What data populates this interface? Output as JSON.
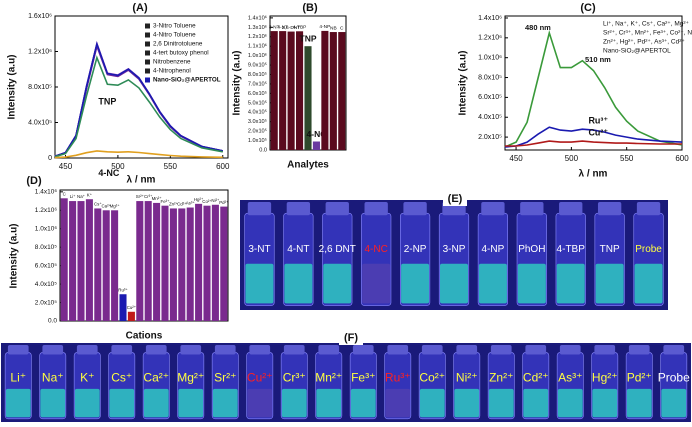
{
  "chart_data": [
    {
      "type": "line",
      "title": "(A)",
      "x_label": "λ / nm",
      "y_label": "Intensity (a.u)",
      "x": [
        440,
        450,
        460,
        470,
        480,
        490,
        500,
        510,
        520,
        530,
        540,
        550,
        560,
        580,
        600
      ],
      "xlim": [
        440,
        605
      ],
      "xticks": [
        450,
        500,
        550,
        600
      ],
      "ylim": [
        0,
        1600000
      ],
      "yticks": [
        0,
        {
          "value": 400000,
          "label": "4.0x10⁵"
        },
        {
          "value": 800000,
          "label": "8.0x10⁵"
        },
        {
          "value": 1200000,
          "label": "1.2x10⁶"
        },
        {
          "value": 1600000,
          "label": "1.6x10⁶"
        }
      ],
      "series": [
        {
          "name": "3-Nitro Toluene",
          "color": "#7b2d8e",
          "values": [
            20000,
            60000,
            250000,
            800000,
            1280000,
            950000,
            930000,
            1000000,
            900000,
            720000,
            520000,
            360000,
            250000,
            130000,
            80000
          ]
        },
        {
          "name": "4-Nitro Toluene",
          "color": "#3a3ab0",
          "values": [
            20000,
            60000,
            245000,
            790000,
            1270000,
            945000,
            925000,
            995000,
            895000,
            715000,
            515000,
            355000,
            248000,
            128000,
            79000
          ]
        },
        {
          "name": "2,6 Dinitrotoluene",
          "color": "#c040c0",
          "values": [
            20000,
            62000,
            255000,
            810000,
            1290000,
            955000,
            935000,
            1005000,
            905000,
            722000,
            522000,
            362000,
            252000,
            131000,
            80000
          ]
        },
        {
          "name": "4-tert butoxy phenol",
          "color": "#6a1a9a",
          "values": [
            20000,
            58000,
            240000,
            780000,
            1260000,
            940000,
            920000,
            990000,
            890000,
            712000,
            512000,
            352000,
            246000,
            127000,
            78000
          ]
        },
        {
          "name": "Nitrobenzene",
          "color": "#2a5ad0",
          "values": [
            20000,
            61000,
            250000,
            805000,
            1285000,
            952000,
            932000,
            1002000,
            902000,
            720000,
            520000,
            360000,
            250000,
            130000,
            80000
          ]
        },
        {
          "name": "4-Nitrophenol",
          "color": "#8a3aa0",
          "values": [
            20000,
            60000,
            248000,
            795000,
            1275000,
            948000,
            928000,
            998000,
            898000,
            718000,
            518000,
            358000,
            249000,
            129000,
            79000
          ]
        },
        {
          "name": "Nano-SiO₂@APERTOL",
          "color": "#1a1ab0",
          "values": [
            20000,
            60000,
            252000,
            802000,
            1282000,
            951000,
            931000,
            1001000,
            901000,
            721000,
            521000,
            361000,
            251000,
            130000,
            80000
          ]
        },
        {
          "name": "TNP",
          "color": "#2e8b57",
          "in_legend": false,
          "values": [
            15000,
            50000,
            220000,
            700000,
            1130000,
            830000,
            820000,
            880000,
            790000,
            630000,
            460000,
            320000,
            220000,
            115000,
            70000
          ]
        },
        {
          "name": "4-NC",
          "color": "#e0a020",
          "in_legend": false,
          "values": [
            5000,
            10000,
            30000,
            60000,
            80000,
            70000,
            65000,
            70000,
            62000,
            50000,
            38000,
            28000,
            20000,
            12000,
            8000
          ]
        }
      ]
    },
    {
      "type": "bar",
      "title": "(B)",
      "x_label": "Analytes",
      "y_label": "Intensity (a.u)",
      "categories": [
        "3-NT",
        "4-NT",
        "2,6-DNT",
        "4-TBP",
        "TNP",
        "4-NC",
        "4-NP",
        "NB",
        "C"
      ],
      "values": [
        1260000,
        1260000,
        1255000,
        1258000,
        1100000,
        90000,
        1262000,
        1250000,
        1250000
      ],
      "colors": [
        "#5a0a1e",
        "#5a0a1e",
        "#5a0a1e",
        "#5a0a1e",
        "#2f4a2c",
        "#6a3aa0",
        "#5a0a1e",
        "#5a0a1e",
        "#5a0a1e"
      ],
      "ylim": [
        0,
        1420000
      ],
      "yticks": [
        {
          "value": 0,
          "label": "0.0"
        },
        {
          "value": 100000,
          "label": "1.0x10⁵"
        },
        {
          "value": 200000,
          "label": "2.0x10⁵"
        },
        {
          "value": 300000,
          "label": "3.0x10⁵"
        },
        {
          "value": 400000,
          "label": "4.0x10⁵"
        },
        {
          "value": 500000,
          "label": "5.0x10⁵"
        },
        {
          "value": 600000,
          "label": "6.0x10⁵"
        },
        {
          "value": 700000,
          "label": "7.0x10⁵"
        },
        {
          "value": 800000,
          "label": "8.0x10⁵"
        },
        {
          "value": 900000,
          "label": "9.0x10⁵"
        },
        {
          "value": 1000000,
          "label": "1.0x10⁶"
        },
        {
          "value": 1100000,
          "label": "1.1x10⁶"
        },
        {
          "value": 1200000,
          "label": "1.2x10⁶"
        },
        {
          "value": 1300000,
          "label": "1.3x10⁶"
        },
        {
          "value": 1400000,
          "label": "1.4x10⁶"
        }
      ]
    },
    {
      "type": "line",
      "title": "(C)",
      "x_label": "λ / nm",
      "y_label": "Intensity (a.u)",
      "annotations": [
        "480 nm",
        "510 nm"
      ],
      "legend_lines": [
        "Li⁺, Na⁺, K⁺, Cs⁺, Ca²⁺, Mg²⁺",
        "Sr²⁺, Cr³⁺, Mn²⁺, Fe³⁺, Co²⁺, Ni²⁺",
        "Zn²⁺, Hg²⁺, Pd²⁺, As³⁺, Cd²⁺"
      ],
      "x": [
        440,
        450,
        460,
        470,
        480,
        490,
        500,
        510,
        520,
        530,
        540,
        550,
        560,
        580,
        600
      ],
      "xlim": [
        440,
        600
      ],
      "xticks": [
        450,
        500,
        550,
        600
      ],
      "ylim": [
        70000,
        1420000
      ],
      "yticks": [
        {
          "value": 200000,
          "label": "2.0x10⁵"
        },
        {
          "value": 400000,
          "label": "4.0x10⁵"
        },
        {
          "value": 600000,
          "label": "6.0x10⁵"
        },
        {
          "value": 800000,
          "label": "8.0x10⁵"
        },
        {
          "value": 1000000,
          "label": "1.0x10⁶"
        },
        {
          "value": 1200000,
          "label": "1.2x10⁶"
        },
        {
          "value": 1400000,
          "label": "1.4x10⁶"
        }
      ],
      "series": [
        {
          "name": "Nano-SiO₂@APERTOL",
          "color": "#3a9a3a",
          "values": [
            100000,
            150000,
            350000,
            800000,
            1250000,
            900000,
            900000,
            970000,
            870000,
            700000,
            500000,
            360000,
            260000,
            160000,
            120000
          ]
        },
        {
          "name": "Ru³⁺",
          "color": "#1a1ab0",
          "in_legend": false,
          "values": [
            100000,
            110000,
            150000,
            230000,
            300000,
            270000,
            260000,
            280000,
            270000,
            250000,
            220000,
            200000,
            180000,
            160000,
            150000
          ]
        },
        {
          "name": "Cu²⁺",
          "color": "#b01a1a",
          "in_legend": false,
          "values": [
            110000,
            110000,
            120000,
            140000,
            160000,
            150000,
            150000,
            160000,
            150000,
            145000,
            140000,
            140000,
            135000,
            130000,
            130000
          ]
        }
      ]
    },
    {
      "type": "bar",
      "title": "(D)",
      "x_label": "Cations",
      "y_label": "Intensity (a.u)",
      "categories": [
        "C",
        "Li⁺",
        "Na⁺",
        "K⁺",
        "Cs⁺",
        "Ca²⁺",
        "Mg²⁺",
        "Ru³⁺",
        "Cu²⁺",
        "Sr²⁺",
        "Cr³⁺",
        "Mn²⁺",
        "Fe³⁺",
        "Zn²⁺",
        "Cd²⁺",
        "As³⁺",
        "Hg²⁺",
        "Co²⁺",
        "Ni²⁺",
        "Pd²⁺"
      ],
      "values": [
        1330000,
        1300000,
        1300000,
        1320000,
        1220000,
        1200000,
        1200000,
        290000,
        100000,
        1300000,
        1300000,
        1280000,
        1250000,
        1220000,
        1220000,
        1230000,
        1270000,
        1250000,
        1260000,
        1240000
      ],
      "colors": [
        "#7a2a8e",
        "#7a2a8e",
        "#7a2a8e",
        "#7a2a8e",
        "#7a2a8e",
        "#7a2a8e",
        "#7a2a8e",
        "#1a1ab0",
        "#c01a1a",
        "#7a2a8e",
        "#7a2a8e",
        "#7a2a8e",
        "#7a2a8e",
        "#7a2a8e",
        "#7a2a8e",
        "#7a2a8e",
        "#7a2a8e",
        "#7a2a8e",
        "#7a2a8e",
        "#7a2a8e"
      ],
      "ylim": [
        0,
        1420000
      ],
      "yticks": [
        {
          "value": 0,
          "label": "0.0"
        },
        {
          "value": 200000,
          "label": "2.0x10⁵"
        },
        {
          "value": 400000,
          "label": "4.0x10⁵"
        },
        {
          "value": 600000,
          "label": "6.0x10⁵"
        },
        {
          "value": 800000,
          "label": "8.0x10⁵"
        },
        {
          "value": 1000000,
          "label": "1.0x10⁶"
        },
        {
          "value": 1200000,
          "label": "1.2x10⁶"
        },
        {
          "value": 1400000,
          "label": "1.4x10⁶"
        }
      ]
    }
  ],
  "photos": [
    {
      "label": "(E)",
      "vials": [
        {
          "text": "3-NT",
          "color": "#ffffff"
        },
        {
          "text": "4-NT",
          "color": "#ffffff"
        },
        {
          "text": "2,6 DNT",
          "color": "#ffffff"
        },
        {
          "text": "4-NC",
          "color": "#ff2020"
        },
        {
          "text": "2-NP",
          "color": "#ffffff"
        },
        {
          "text": "3-NP",
          "color": "#ffffff"
        },
        {
          "text": "4-NP",
          "color": "#ffffff"
        },
        {
          "text": "PhOH",
          "color": "#ffffff"
        },
        {
          "text": "4-TBP",
          "color": "#ffffff"
        },
        {
          "text": "TNP",
          "color": "#ffffff"
        },
        {
          "text": "Probe",
          "color": "#ffff40"
        }
      ]
    },
    {
      "label": "(F)",
      "vials": [
        {
          "text": "Li⁺",
          "color": "#ffff40"
        },
        {
          "text": "Na⁺",
          "color": "#ffff40"
        },
        {
          "text": "K⁺",
          "color": "#ffff40"
        },
        {
          "text": "Cs⁺",
          "color": "#ffff40"
        },
        {
          "text": "Ca²⁺",
          "color": "#ffff40"
        },
        {
          "text": "Mg²⁺",
          "color": "#ffff40"
        },
        {
          "text": "Sr²⁺",
          "color": "#ffff40"
        },
        {
          "text": "Cu²⁺",
          "color": "#ff2020"
        },
        {
          "text": "Cr³⁺",
          "color": "#ffff40"
        },
        {
          "text": "Mn²⁺",
          "color": "#ffff40"
        },
        {
          "text": "Fe³⁺",
          "color": "#ffff40"
        },
        {
          "text": "Ru³⁺",
          "color": "#ff2020"
        },
        {
          "text": "Co²⁺",
          "color": "#ffff40"
        },
        {
          "text": "Ni²⁺",
          "color": "#ffff40"
        },
        {
          "text": "Zn²⁺",
          "color": "#ffff40"
        },
        {
          "text": "Cd²⁺",
          "color": "#ffff40"
        },
        {
          "text": "As³⁺",
          "color": "#ffff40"
        },
        {
          "text": "Hg²⁺",
          "color": "#ffff40"
        },
        {
          "text": "Pd²⁺",
          "color": "#ffff40"
        },
        {
          "text": "Probe",
          "color": "#ffffff"
        }
      ]
    }
  ]
}
